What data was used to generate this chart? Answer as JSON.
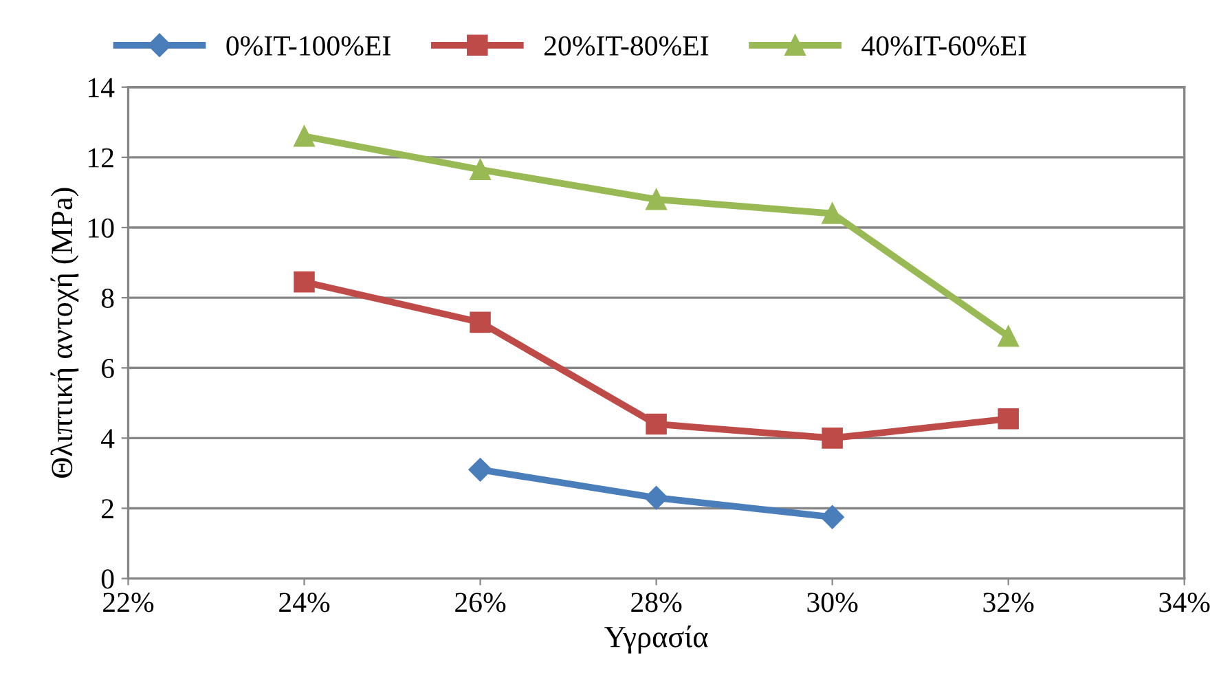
{
  "chart_data": {
    "type": "line",
    "xlabel": "Υγρασία",
    "ylabel": "Θλιπτική αντοχή (MPa)",
    "xlim": [
      22,
      34
    ],
    "xticks": [
      {
        "value": 22,
        "label": "22%"
      },
      {
        "value": 24,
        "label": "24%"
      },
      {
        "value": 26,
        "label": "26%"
      },
      {
        "value": 28,
        "label": "28%"
      },
      {
        "value": 30,
        "label": "30%"
      },
      {
        "value": 32,
        "label": "32%"
      },
      {
        "value": 34,
        "label": "34%"
      }
    ],
    "ylim": [
      0,
      14
    ],
    "yticks": [
      0,
      2,
      4,
      6,
      8,
      10,
      12,
      14
    ],
    "grid": "y",
    "legend": "top",
    "series": [
      {
        "name": "0%IT-100%EI",
        "color": "#4a7ebb",
        "marker": "diamond",
        "x": [
          26,
          28,
          30
        ],
        "values": [
          3.1,
          2.3,
          1.75
        ]
      },
      {
        "name": "20%IT-80%EI",
        "color": "#be4b48",
        "marker": "square",
        "x": [
          24,
          26,
          28,
          30,
          32
        ],
        "values": [
          8.45,
          7.3,
          4.4,
          4.0,
          4.55
        ]
      },
      {
        "name": "40%IT-60%EI",
        "color": "#98b954",
        "marker": "triangle",
        "x": [
          24,
          26,
          28,
          30,
          32
        ],
        "values": [
          12.6,
          11.65,
          10.8,
          10.4,
          6.9
        ]
      }
    ]
  }
}
